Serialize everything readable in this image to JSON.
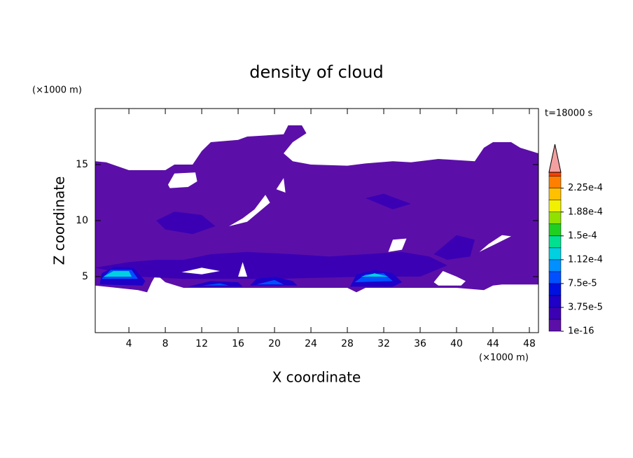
{
  "chart_data": {
    "type": "contour",
    "title": "density of cloud",
    "y_unit": "(×1000 m)",
    "x_unit": "(×1000 m)",
    "time_label": "t=18000 s",
    "xlabel": "X coordinate",
    "ylabel": "Z coordinate",
    "xlim": [
      0.3,
      49
    ],
    "ylim": [
      0,
      20
    ],
    "xticks": [
      4,
      8,
      12,
      16,
      20,
      24,
      28,
      32,
      36,
      40,
      44,
      48
    ],
    "yticks": [
      5,
      10,
      15
    ],
    "colorbar": {
      "clim": [
        1e-16,
        0.00025
      ],
      "boundaries": [
        1e-16,
        1.875e-05,
        3.75e-05,
        5.625e-05,
        7.5e-05,
        9.375e-05,
        0.0001125,
        0.00013125,
        0.00015,
        0.00016875,
        0.0001875,
        0.00020625,
        0.000225,
        0.00024375
      ],
      "colors": [
        "#5b0fa8",
        "#3c00b4",
        "#1e00c8",
        "#0010e0",
        "#0050ff",
        "#0090ff",
        "#00d0e0",
        "#00e090",
        "#20d020",
        "#90e000",
        "#f0f000",
        "#ffc000",
        "#ff8000",
        "#ff4000"
      ],
      "extend_color": "#f4a0a0",
      "ticks": [
        {
          "value": 1e-16,
          "label": "1e-16"
        },
        {
          "value": 3.75e-05,
          "label": "3.75e-5"
        },
        {
          "value": 7.5e-05,
          "label": "7.5e-5"
        },
        {
          "value": 0.0001125,
          "label": "1.12e-4"
        },
        {
          "value": 0.00015,
          "label": "1.5e-4"
        },
        {
          "value": 0.0001875,
          "label": "1.88e-4"
        },
        {
          "value": 0.000225,
          "label": "2.25e-4"
        }
      ]
    },
    "regions": [
      {
        "level": 1e-16,
        "points": [
          [
            0.3,
            15.3
          ],
          [
            1.5,
            15.2
          ],
          [
            4,
            14.5
          ],
          [
            8,
            14.5
          ],
          [
            9,
            15
          ],
          [
            11,
            15
          ],
          [
            12,
            16.2
          ],
          [
            13,
            17
          ],
          [
            16,
            17.2
          ],
          [
            17,
            17.5
          ],
          [
            21,
            17.7
          ],
          [
            21.5,
            18.5
          ],
          [
            23,
            18.5
          ],
          [
            23.5,
            17.8
          ],
          [
            22,
            17
          ],
          [
            21,
            16
          ],
          [
            22,
            15.3
          ],
          [
            24,
            15
          ],
          [
            28,
            14.9
          ],
          [
            30,
            15.1
          ],
          [
            33,
            15.3
          ],
          [
            35,
            15.2
          ],
          [
            38,
            15.5
          ],
          [
            42,
            15.3
          ],
          [
            43,
            16.5
          ],
          [
            44,
            17
          ],
          [
            46,
            17
          ],
          [
            47,
            16.5
          ],
          [
            49,
            16
          ],
          [
            49,
            4.3
          ],
          [
            45,
            4.3
          ],
          [
            44,
            4.2
          ],
          [
            43,
            3.8
          ],
          [
            40,
            4
          ],
          [
            36,
            4
          ],
          [
            30,
            4
          ],
          [
            29,
            3.6
          ],
          [
            28,
            4
          ],
          [
            10,
            4
          ],
          [
            8,
            4.5
          ],
          [
            7,
            5.2
          ],
          [
            6.5,
            4.5
          ],
          [
            6,
            3.6
          ],
          [
            5,
            3.8
          ],
          [
            0.3,
            4.2
          ]
        ]
      },
      {
        "level": 1.875e-05,
        "points": [
          [
            7,
            10
          ],
          [
            9,
            10.8
          ],
          [
            12,
            10.5
          ],
          [
            13.5,
            9.5
          ],
          [
            11,
            8.8
          ],
          [
            8,
            9.2
          ]
        ]
      },
      {
        "level": 1.875e-05,
        "points": [
          [
            30,
            12
          ],
          [
            32,
            12.4
          ],
          [
            35,
            11.5
          ],
          [
            33,
            11
          ]
        ]
      },
      {
        "level": 1.875e-05,
        "points": [
          [
            37.5,
            7
          ],
          [
            40,
            8.7
          ],
          [
            42,
            8.3
          ],
          [
            41.5,
            6.8
          ],
          [
            39,
            6.5
          ]
        ]
      },
      {
        "level": 1.875e-05,
        "points": [
          [
            0.3,
            5.8
          ],
          [
            4,
            6.3
          ],
          [
            7,
            6.5
          ],
          [
            10,
            6.5
          ],
          [
            13,
            7
          ],
          [
            17,
            7.2
          ],
          [
            22,
            7
          ],
          [
            26,
            6.8
          ],
          [
            30,
            7
          ],
          [
            34,
            7.2
          ],
          [
            37,
            6.8
          ],
          [
            39,
            6
          ],
          [
            36,
            5
          ],
          [
            30,
            5
          ],
          [
            20,
            4.8
          ],
          [
            10,
            4.8
          ],
          [
            5,
            5
          ]
        ]
      },
      {
        "level": 3.75e-05,
        "points": [
          [
            0.8,
            4.3
          ],
          [
            1,
            5.3
          ],
          [
            2.5,
            5.9
          ],
          [
            4.5,
            5.8
          ],
          [
            5.8,
            4.6
          ],
          [
            5.5,
            4.2
          ]
        ]
      },
      {
        "level": 3.75e-05,
        "points": [
          [
            28.3,
            4.1
          ],
          [
            29,
            5.2
          ],
          [
            31,
            5.6
          ],
          [
            33,
            5.3
          ],
          [
            34,
            4.5
          ],
          [
            33,
            4.1
          ]
        ]
      },
      {
        "level": 3.75e-05,
        "points": [
          [
            17.3,
            4.2
          ],
          [
            18,
            4.8
          ],
          [
            20,
            5
          ],
          [
            22,
            4.6
          ],
          [
            22.5,
            4.2
          ]
        ]
      },
      {
        "level": 3.75e-05,
        "points": [
          [
            10.5,
            4.1
          ],
          [
            13,
            4.6
          ],
          [
            16,
            4.5
          ],
          [
            16.5,
            4.1
          ]
        ]
      },
      {
        "level": 7.5e-05,
        "points": [
          [
            1,
            4.8
          ],
          [
            2,
            5.6
          ],
          [
            4.3,
            5.6
          ],
          [
            5,
            4.8
          ]
        ]
      },
      {
        "level": 7.5e-05,
        "points": [
          [
            28.8,
            4.5
          ],
          [
            30,
            5.2
          ],
          [
            32,
            5.3
          ],
          [
            33,
            4.6
          ]
        ]
      },
      {
        "level": 7.5e-05,
        "points": [
          [
            18,
            4.3
          ],
          [
            20,
            4.7
          ],
          [
            21,
            4.3
          ]
        ]
      },
      {
        "level": 7.5e-05,
        "points": [
          [
            12,
            4.2
          ],
          [
            14,
            4.4
          ],
          [
            15,
            4.2
          ]
        ]
      },
      {
        "level": 0.0001125,
        "points": [
          [
            1.2,
            5
          ],
          [
            2.3,
            5.5
          ],
          [
            4,
            5.5
          ],
          [
            4.3,
            5
          ]
        ]
      },
      {
        "level": 0.0001125,
        "points": [
          [
            29.5,
            5
          ],
          [
            31,
            5.3
          ],
          [
            32.5,
            5
          ]
        ]
      }
    ],
    "holes": [
      [
        [
          8.3,
          13.2
        ],
        [
          9,
          14.2
        ],
        [
          11.3,
          14.3
        ],
        [
          11.5,
          13.5
        ],
        [
          10.5,
          13
        ],
        [
          8.5,
          12.9
        ]
      ],
      [
        [
          20.2,
          12.8
        ],
        [
          21,
          13.8
        ],
        [
          21.2,
          12.5
        ]
      ],
      [
        [
          15,
          9.5
        ],
        [
          17,
          9.9
        ],
        [
          19.5,
          11.6
        ],
        [
          19,
          12.3
        ],
        [
          17.8,
          11
        ],
        [
          16.5,
          10.2
        ]
      ],
      [
        [
          32.5,
          7.2
        ],
        [
          34,
          7.4
        ],
        [
          34.5,
          8.4
        ],
        [
          33,
          8.3
        ]
      ],
      [
        [
          42.5,
          7.2
        ],
        [
          44,
          7.8
        ],
        [
          46,
          8.6
        ],
        [
          45,
          8.7
        ],
        [
          43.5,
          7.9
        ]
      ],
      [
        [
          37.5,
          4.5
        ],
        [
          38.5,
          5.5
        ],
        [
          40,
          5
        ],
        [
          41,
          4.6
        ],
        [
          40.5,
          4.2
        ],
        [
          38,
          4.2
        ]
      ],
      [
        [
          9.8,
          5.4
        ],
        [
          12,
          5.8
        ],
        [
          14,
          5.5
        ],
        [
          12,
          5.2
        ]
      ],
      [
        [
          16,
          5
        ],
        [
          16.5,
          6.3
        ],
        [
          17,
          5
        ]
      ]
    ]
  }
}
